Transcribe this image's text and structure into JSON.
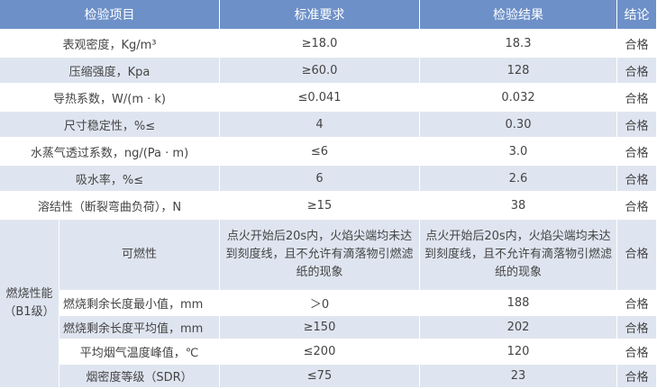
{
  "headers": [
    "检验项目",
    "标准要求",
    "检验结果",
    "结论"
  ],
  "rows": [
    {
      "item": "表观密度，Kg/m³",
      "standard": "≥18.0",
      "result": "18.3",
      "conclusion": "合格"
    },
    {
      "item": "压缩强度，Kpa",
      "standard": "≥60.0",
      "result": "128",
      "conclusion": "合格"
    },
    {
      "item": "导热系数，W/(m · k)",
      "standard": "≤0.041",
      "result": "0.032",
      "conclusion": "合格"
    },
    {
      "item": "尺寸稳定性，%≤",
      "standard": "4",
      "result": "0.30",
      "conclusion": "合格"
    },
    {
      "item": "水蒸气透过系数，ng/(Pa · m)",
      "standard": "≤6",
      "result": "3.0",
      "conclusion": "合格"
    },
    {
      "item": "吸水率，%≤",
      "standard": "6",
      "result": "2.6",
      "conclusion": "合格"
    },
    {
      "item": "溶结性（断裂弯曲负荷），N",
      "standard": "≥15",
      "result": "38",
      "conclusion": "合格"
    }
  ],
  "burning": {
    "group_label": "燃烧性能（B1级）",
    "rows": [
      {
        "item": "可燃性",
        "standard": "点火开始后20s内，火焰尖端均未达到刻度线，且不允许有滴落物引燃滤纸的现象",
        "result": "点火开始后20s内，火焰尖端均未达到刻度线，且不允许有滴落物引燃滤纸的现象",
        "conclusion": "合格"
      },
      {
        "item": "燃烧剩余长度最小值，mm",
        "standard": "＞0",
        "result": "188",
        "conclusion": "合格"
      },
      {
        "item": "燃烧剩余长度平均值，mm",
        "standard": "≥150",
        "result": "202",
        "conclusion": "合格"
      },
      {
        "item": "平均烟气温度峰值，℃",
        "standard": "≤200",
        "result": "120",
        "conclusion": "合格"
      },
      {
        "item": "烟密度等级（SDR）",
        "standard": "≤75",
        "result": "23",
        "conclusion": "合格"
      }
    ]
  },
  "colors": {
    "header": "#6d90c8",
    "row_alt": "#dfe5f0"
  }
}
